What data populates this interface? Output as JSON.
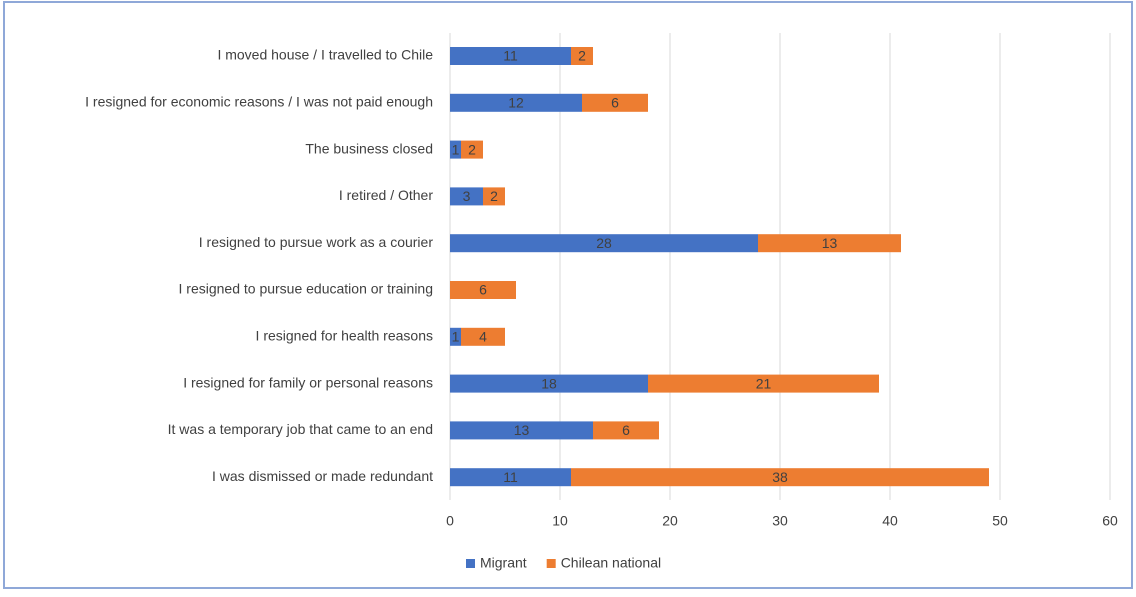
{
  "chart_data": {
    "type": "stacked-bar-horizontal",
    "categories": [
      "I moved house / I travelled to Chile",
      "I resigned for economic reasons / I was not paid enough",
      "The business closed",
      "I retired / Other",
      "I resigned to pursue work as a courier",
      "I resigned to pursue education or training",
      "I resigned for health reasons",
      "I resigned for family or personal reasons",
      "It was a temporary job that came to an end",
      "I was dismissed or made redundant"
    ],
    "series": [
      {
        "name": "Migrant",
        "color": "#4472c4",
        "values": [
          11,
          12,
          1,
          3,
          28,
          0,
          1,
          18,
          13,
          11
        ]
      },
      {
        "name": "Chilean national",
        "color": "#ed7d31",
        "values": [
          2,
          6,
          2,
          2,
          13,
          6,
          4,
          21,
          6,
          38
        ]
      }
    ],
    "xlim": [
      0,
      60
    ],
    "xticks": [
      0,
      10,
      20,
      30,
      40,
      50,
      60
    ],
    "grid": true,
    "legend": "bottom"
  }
}
